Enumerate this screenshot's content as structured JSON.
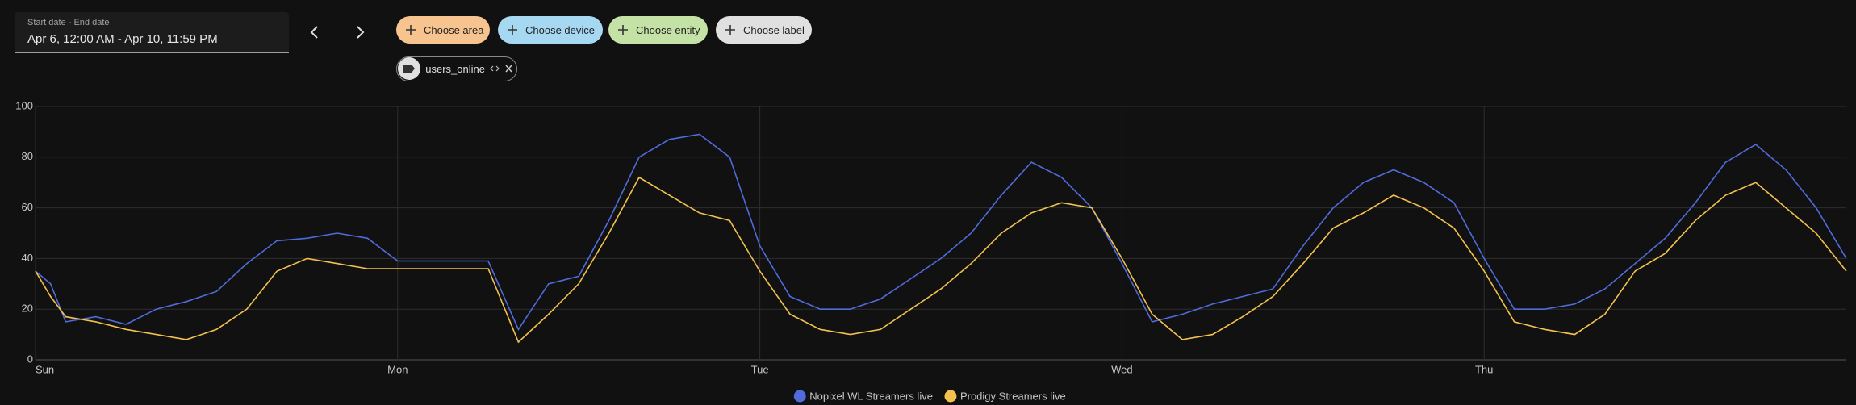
{
  "date_picker": {
    "label": "Start date - End date",
    "value": "Apr 6, 12:00 AM - Apr 10, 11:59 PM"
  },
  "chips": [
    "Choose area",
    "Choose device",
    "Choose entity",
    "Choose label"
  ],
  "entity_chip": "users_online",
  "chart_data": {
    "type": "line",
    "x": [
      0,
      1,
      2,
      4,
      6,
      8,
      10,
      12,
      14,
      16,
      18,
      20,
      22,
      24,
      26,
      28,
      30,
      32,
      34,
      36,
      38,
      40,
      42,
      44,
      46,
      48,
      50,
      52,
      54,
      56,
      58,
      60,
      62,
      64,
      66,
      68,
      70,
      72,
      74,
      76,
      78,
      80,
      82,
      84,
      86,
      88,
      90,
      92,
      94,
      96,
      98,
      100,
      102,
      104,
      106,
      108,
      110,
      112,
      114,
      116,
      118,
      120
    ],
    "xlim": [
      0,
      120
    ],
    "xticks": [
      {
        "value": 0,
        "label": "Sun"
      },
      {
        "value": 24,
        "label": "Mon"
      },
      {
        "value": 48,
        "label": "Tue"
      },
      {
        "value": 72,
        "label": "Wed"
      },
      {
        "value": 96,
        "label": "Thu"
      }
    ],
    "ylim": [
      0,
      100
    ],
    "yticks": [
      0,
      20,
      40,
      60,
      80,
      100
    ],
    "grid": true,
    "series": [
      {
        "name": "Nopixel WL Streamers live",
        "color": "#4f6bdc",
        "values": [
          35,
          30,
          15,
          17,
          14,
          20,
          23,
          27,
          38,
          47,
          48,
          50,
          48,
          39,
          39,
          39,
          39,
          12,
          30,
          33,
          55,
          80,
          87,
          89,
          80,
          45,
          25,
          20,
          20,
          24,
          32,
          40,
          50,
          65,
          78,
          72,
          60,
          38,
          15,
          18,
          22,
          25,
          28,
          45,
          60,
          70,
          75,
          70,
          62,
          40,
          20,
          20,
          22,
          28,
          38,
          48,
          62,
          78,
          85,
          75,
          60,
          40
        ]
      },
      {
        "name": "Prodigy Streamers live",
        "color": "#f3c14e",
        "values": [
          35,
          25,
          17,
          15,
          12,
          10,
          8,
          12,
          20,
          35,
          40,
          38,
          36,
          36,
          36,
          36,
          36,
          7,
          18,
          30,
          50,
          72,
          65,
          58,
          55,
          35,
          18,
          12,
          10,
          12,
          20,
          28,
          38,
          50,
          58,
          62,
          60,
          40,
          18,
          8,
          10,
          17,
          25,
          38,
          52,
          58,
          65,
          60,
          52,
          35,
          15,
          12,
          10,
          18,
          35,
          42,
          55,
          65,
          70,
          60,
          50,
          35
        ]
      }
    ]
  }
}
